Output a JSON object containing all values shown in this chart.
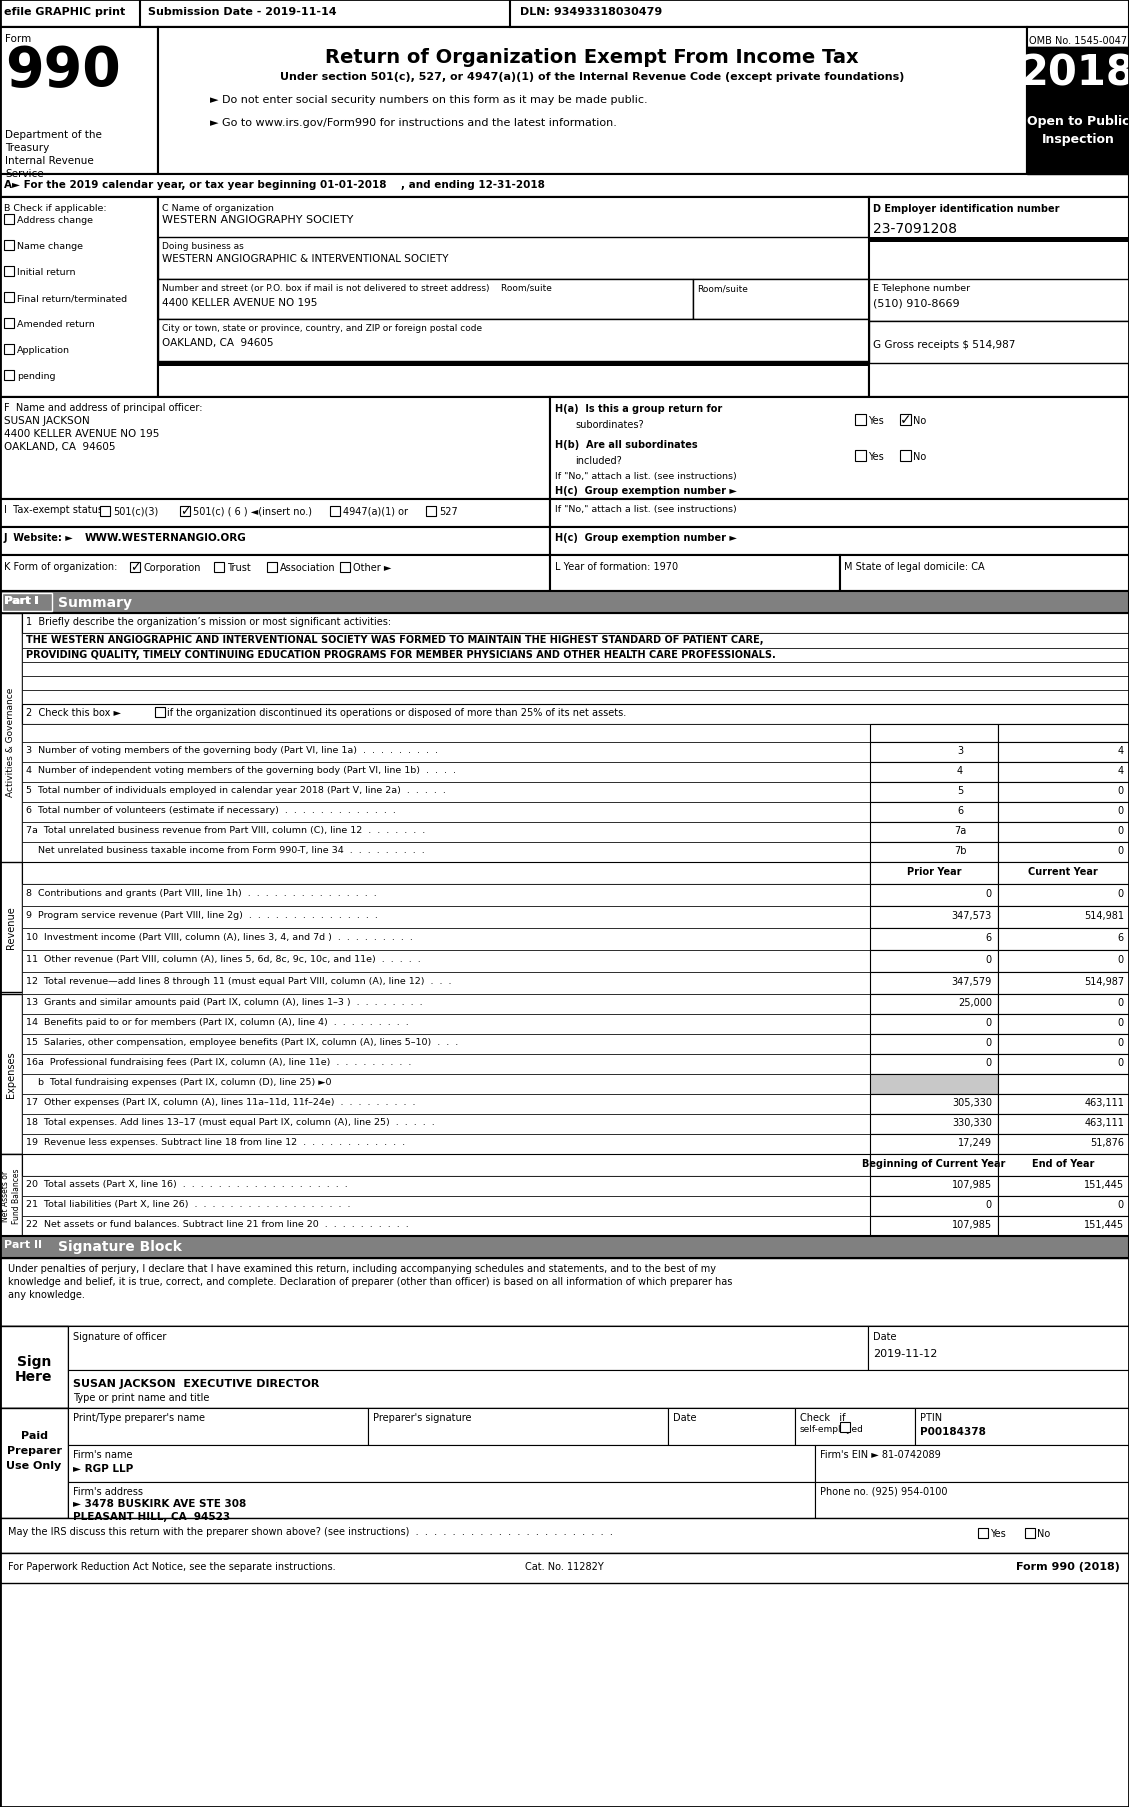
{
  "efile_text": "efile GRAPHIC print",
  "submission_date": "Submission Date - 2019-11-14",
  "dln": "DLN: 93493318030479",
  "main_title": "Return of Organization Exempt From Income Tax",
  "subtitle1": "Under section 501(c), 527, or 4947(a)(1) of the Internal Revenue Code (except private foundations)",
  "subtitle2": "► Do not enter social security numbers on this form as it may be made public.",
  "subtitle3": "► Go to www.irs.gov/Form990 for instructions and the latest information.",
  "dept1": "Department of the",
  "dept2": "Treasury",
  "dept3": "Internal Revenue",
  "dept4": "Service",
  "omb": "OMB No. 1545-0047",
  "year": "2018",
  "open_to": "Open to Public",
  "inspection": "Inspection",
  "row_a": "A► For the 2019 calendar year, or tax year beginning 01-01-2018    , and ending 12-31-2018",
  "org_name": "WESTERN ANGIOGRAPHY SOCIETY",
  "dba_name": "WESTERN ANGIOGRAPHIC & INTERVENTIONAL SOCIETY",
  "street_label": "Number and street (or P.O. box if mail is not delivered to street address)",
  "street": "4400 KELLER AVENUE NO 195",
  "city_label": "City or town, state or province, country, and ZIP or foreign postal code",
  "city": "OAKLAND, CA  94605",
  "ein": "23-7091208",
  "phone": "(510) 910-8669",
  "g_label": "G Gross receipts $ 514,987",
  "officer_name": "SUSAN JACKSON",
  "officer_addr1": "4400 KELLER AVENUE NO 195",
  "officer_city": "OAKLAND, CA  94605",
  "hc_label": "H(c)  Group exemption number ►",
  "j_website": "WWW.WESTERNANGIO.ORG",
  "l_label": "L Year of formation: 1970",
  "m_label": "M State of legal domicile: CA",
  "part1_label": "Part I",
  "part1_title": "Summary",
  "mission_line1": "THE WESTERN ANGIOGRAPHIC AND INTERVENTIONAL SOCIETY WAS FORMED TO MAINTAIN THE HIGHEST STANDARD OF PATIENT CARE,",
  "mission_line2": "PROVIDING QUALITY, TIMELY CONTINUING EDUCATION PROGRAMS FOR MEMBER PHYSICIANS AND OTHER HEALTH CARE PROFESSIONALS.",
  "line2_label": "2  Check this box ►□ if the organization discontinued its operations or disposed of more than 25% of its net assets.",
  "prior_year": "Prior Year",
  "current_year": "Current Year",
  "begin_label": "Beginning of Current Year",
  "end_label": "End of Year",
  "part2_label": "Part II",
  "part2_title": "Signature Block",
  "sig_note1": "Under penalties of perjury, I declare that I have examined this return, including accompanying schedules and statements, and to the best of my",
  "sig_note2": "knowledge and belief, it is true, correct, and complete. Declaration of preparer (other than officer) is based on all information of which preparer has",
  "sig_note3": "any knowledge.",
  "sig_date": "2019-11-12",
  "sig_name": "SUSAN JACKSON  EXECUTIVE DIRECTOR",
  "sig_title": "Type or print name and title",
  "prep_ptin": "P00184378",
  "firm_name": "► RGP LLP",
  "firm_ein": "81-0742089",
  "firm_addr": "► 3478 BUSKIRK AVE STE 308",
  "firm_city": "PLEASANT HILL, CA  94523",
  "firm_phone": "(925) 954-0100",
  "cat_no": "Cat. No. 11282Y",
  "form_footer": "Form 990 (2018)",
  "lines_37": [
    [
      "3  Number of voting members of the governing body (Part VI, line 1a)  .  .  .  .  .  .  .  .  .",
      "3",
      "4"
    ],
    [
      "4  Number of independent voting members of the governing body (Part VI, line 1b)  .  .  .  .",
      "4",
      "4"
    ],
    [
      "5  Total number of individuals employed in calendar year 2018 (Part V, line 2a)  .  .  .  .  .",
      "5",
      "0"
    ],
    [
      "6  Total number of volunteers (estimate if necessary)  .  .  .  .  .  .  .  .  .  .  .  .  .",
      "6",
      "0"
    ],
    [
      "7a  Total unrelated business revenue from Part VIII, column (C), line 12  .  .  .  .  .  .  .",
      "7a",
      "0"
    ],
    [
      "    Net unrelated business taxable income from Form 990-T, line 34  .  .  .  .  .  .  .  .  .",
      "7b",
      "0"
    ]
  ],
  "rev_lines": [
    [
      "8  Contributions and grants (Part VIII, line 1h)  .  .  .  .  .  .  .  .  .  .  .  .  .  .  .",
      "0",
      "0"
    ],
    [
      "9  Program service revenue (Part VIII, line 2g)  .  .  .  .  .  .  .  .  .  .  .  .  .  .  .",
      "347,573",
      "514,981"
    ],
    [
      "10  Investment income (Part VIII, column (A), lines 3, 4, and 7d )  .  .  .  .  .  .  .  .  .",
      "6",
      "6"
    ],
    [
      "11  Other revenue (Part VIII, column (A), lines 5, 6d, 8c, 9c, 10c, and 11e)  .  .  .  .  .",
      "0",
      "0"
    ],
    [
      "12  Total revenue—add lines 8 through 11 (must equal Part VIII, column (A), line 12)  .  .  .",
      "347,579",
      "514,987"
    ]
  ],
  "exp_lines": [
    [
      "13  Grants and similar amounts paid (Part IX, column (A), lines 1–3 )  .  .  .  .  .  .  .  .",
      "25,000",
      "0",
      "normal"
    ],
    [
      "14  Benefits paid to or for members (Part IX, column (A), line 4)  .  .  .  .  .  .  .  .  .",
      "0",
      "0",
      "normal"
    ],
    [
      "15  Salaries, other compensation, employee benefits (Part IX, column (A), lines 5–10)  .  .  .",
      "0",
      "0",
      "normal"
    ],
    [
      "16a  Professional fundraising fees (Part IX, column (A), line 11e)  .  .  .  .  .  .  .  .  .",
      "0",
      "0",
      "normal"
    ],
    [
      "    b  Total fundraising expenses (Part IX, column (D), line 25) ►0",
      "",
      "",
      "gray"
    ],
    [
      "17  Other expenses (Part IX, column (A), lines 11a–11d, 11f–24e)  .  .  .  .  .  .  .  .  .",
      "305,330",
      "463,111",
      "normal"
    ],
    [
      "18  Total expenses. Add lines 13–17 (must equal Part IX, column (A), line 25)  .  .  .  .  .",
      "330,330",
      "463,111",
      "normal"
    ],
    [
      "19  Revenue less expenses. Subtract line 18 from line 12  .  .  .  .  .  .  .  .  .  .  .  .",
      "17,249",
      "51,876",
      "normal"
    ]
  ],
  "net_lines": [
    [
      "20  Total assets (Part X, line 16)  .  .  .  .  .  .  .  .  .  .  .  .  .  .  .  .  .  .  .",
      "107,985",
      "151,445"
    ],
    [
      "21  Total liabilities (Part X, line 26)  .  .  .  .  .  .  .  .  .  .  .  .  .  .  .  .  .  .",
      "0",
      "0"
    ],
    [
      "22  Net assets or fund balances. Subtract line 21 from line 20  .  .  .  .  .  .  .  .  .  .",
      "107,985",
      "151,445"
    ]
  ]
}
